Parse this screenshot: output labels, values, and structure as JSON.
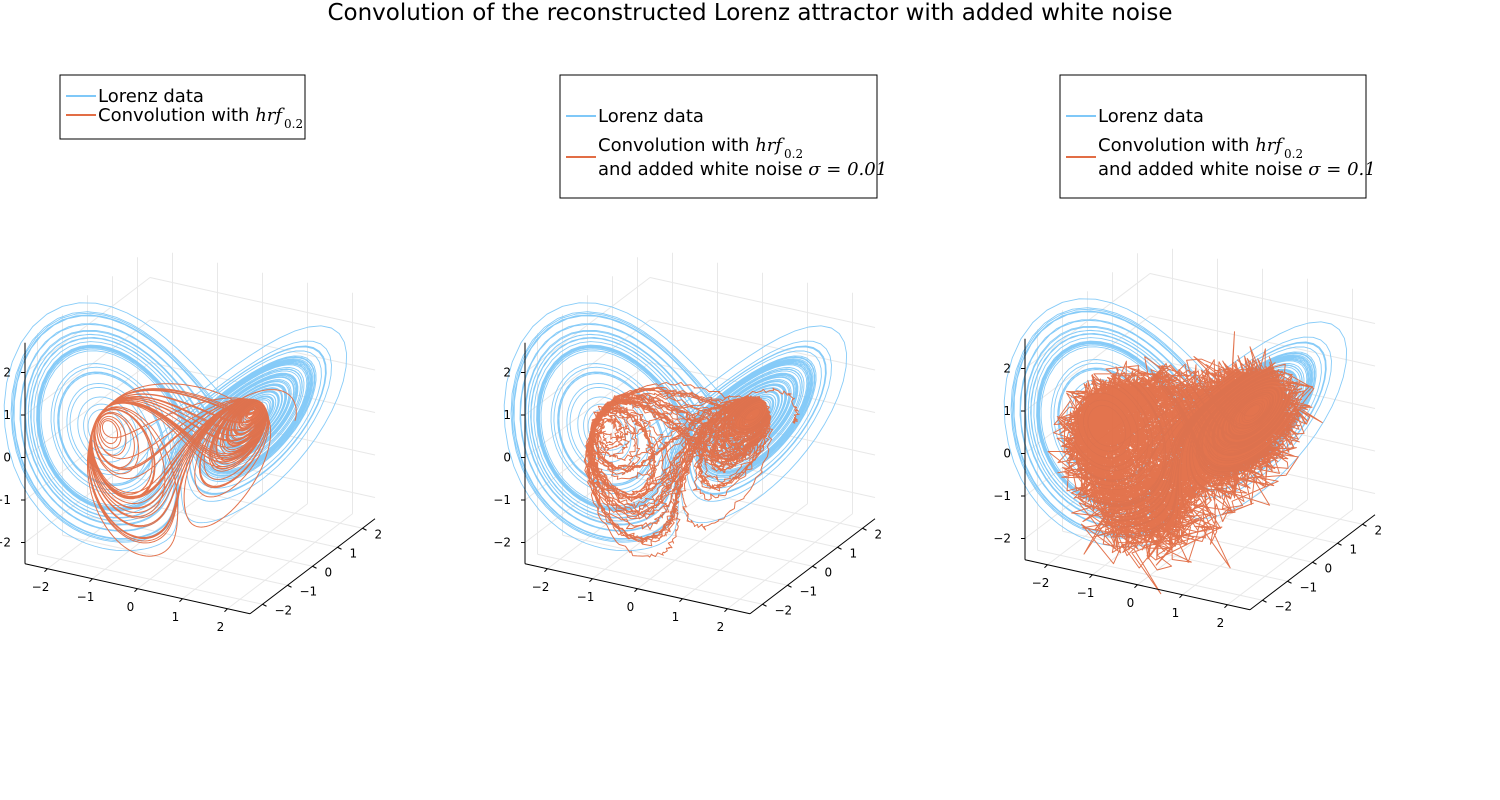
{
  "figure": {
    "title": "Convolution of the reconstructed Lorenz attractor with added white noise"
  },
  "chart_data": [
    {
      "type": "line",
      "subplot": 1,
      "projection": "3d",
      "title": "",
      "xlabel": "",
      "ylabel": "",
      "zlabel": "",
      "xlim": [
        -2.5,
        2.5
      ],
      "ylim": [
        -2.5,
        2.5
      ],
      "zlim": [
        -2.5,
        2.7
      ],
      "x_ticks": [
        "−2",
        "−1",
        "0",
        "1",
        "2"
      ],
      "y_ticks": [
        "−2",
        "−1",
        "0",
        "1",
        "2"
      ],
      "z_ticks": [
        "−2",
        "−1",
        "0",
        "1",
        "2"
      ],
      "grid": true,
      "legend_placement": "top-left",
      "legend": [
        {
          "label": "Lorenz data",
          "color": "#7fc8f8"
        },
        {
          "label": "Convolution with ",
          "math": "hrf",
          "sub": "0.2",
          "color": "#e26d45"
        }
      ],
      "series": [
        {
          "name": "Lorenz data",
          "color": "#7fc8f8",
          "kind": "lorenz",
          "noise": 0
        },
        {
          "name": "Convolution with hrf 0.2",
          "color": "#e26d45",
          "kind": "convolved",
          "noise": 0
        }
      ]
    },
    {
      "type": "line",
      "subplot": 2,
      "projection": "3d",
      "title": "",
      "xlabel": "",
      "ylabel": "",
      "zlabel": "",
      "xlim": [
        -2.5,
        2.5
      ],
      "ylim": [
        -2.5,
        2.5
      ],
      "zlim": [
        -2.5,
        2.7
      ],
      "x_ticks": [
        "−2",
        "−1",
        "0",
        "1",
        "2"
      ],
      "y_ticks": [
        "−2",
        "−1",
        "0",
        "1",
        "2"
      ],
      "z_ticks": [
        "−2",
        "−1",
        "0",
        "1",
        "2"
      ],
      "grid": true,
      "legend_placement": "top",
      "legend": [
        {
          "label": "Lorenz data",
          "color": "#7fc8f8"
        },
        {
          "label": "Convolution with ",
          "math": "hrf",
          "sub": "0.2",
          "line2": "and added white noise ",
          "math2": "σ = 0.01",
          "color": "#e26d45"
        }
      ],
      "series": [
        {
          "name": "Lorenz data",
          "color": "#7fc8f8",
          "kind": "lorenz",
          "noise": 0
        },
        {
          "name": "Convolution with hrf 0.2 and added white noise σ = 0.01",
          "color": "#e26d45",
          "kind": "convolved",
          "noise": 0.01
        }
      ]
    },
    {
      "type": "line",
      "subplot": 3,
      "projection": "3d",
      "title": "",
      "xlabel": "",
      "ylabel": "",
      "zlabel": "",
      "xlim": [
        -2.5,
        2.5
      ],
      "ylim": [
        -2.5,
        2.5
      ],
      "zlim": [
        -2.5,
        2.7
      ],
      "x_ticks": [
        "−2",
        "−1",
        "0",
        "1",
        "2"
      ],
      "y_ticks": [
        "−2",
        "−1",
        "0",
        "1",
        "2"
      ],
      "z_ticks": [
        "−2",
        "−1",
        "0",
        "1",
        "2"
      ],
      "grid": true,
      "legend_placement": "top",
      "legend": [
        {
          "label": "Lorenz data",
          "color": "#7fc8f8"
        },
        {
          "label": "Convolution with ",
          "math": "hrf",
          "sub": "0.2",
          "line2": "and added white noise ",
          "math2": "σ = 0.1",
          "color": "#e26d45"
        }
      ],
      "series": [
        {
          "name": "Lorenz data",
          "color": "#7fc8f8",
          "kind": "lorenz",
          "noise": 0
        },
        {
          "name": "Convolution with hrf 0.2 and added white noise σ = 0.1",
          "color": "#e26d45",
          "kind": "convolved",
          "noise": 0.1
        }
      ]
    }
  ]
}
